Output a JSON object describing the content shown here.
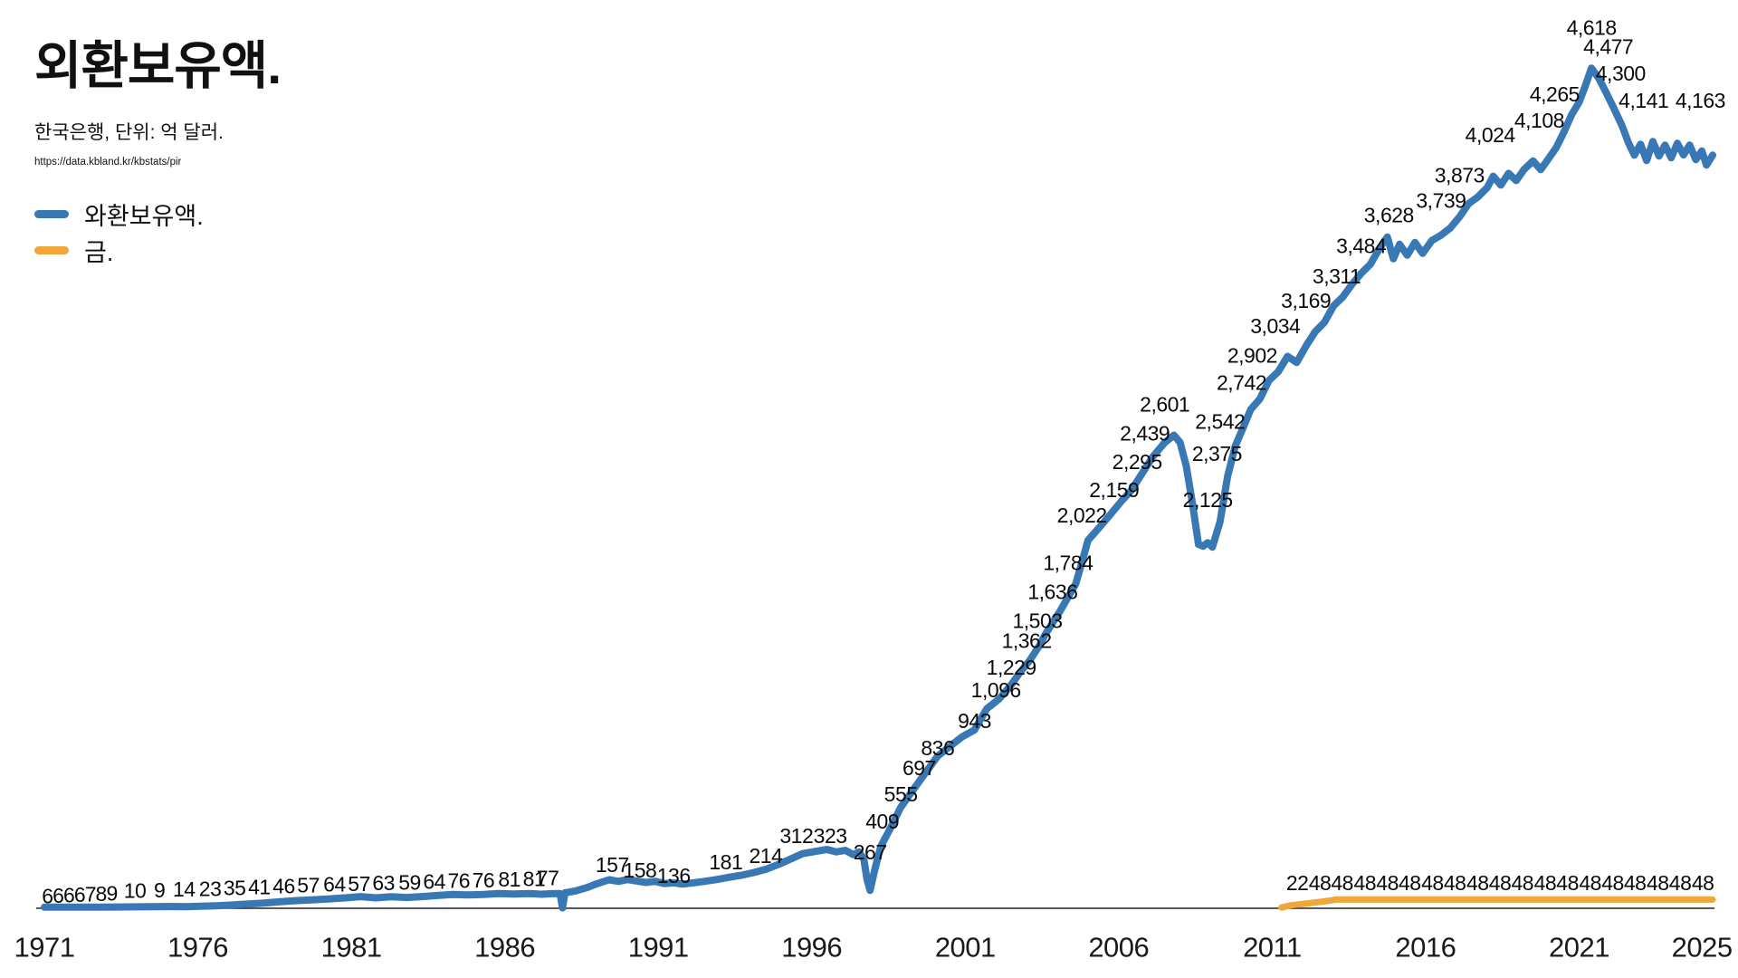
{
  "header": {
    "title": "외환보유액.",
    "subtitle": "한국은행, 단위: 억 달러.",
    "source_url": "https://data.kbland.kr/kbstats/pir"
  },
  "legend": {
    "items": [
      {
        "label": "와환보유액.",
        "color": "#3878b4"
      },
      {
        "label": "금.",
        "color": "#efa63a"
      }
    ]
  },
  "chart_data": {
    "type": "line",
    "title": "외환보유액.",
    "unit": "억 달러",
    "grid": false,
    "legend_position": "top-left",
    "x_axis": {
      "ticks": [
        1971,
        1976,
        1981,
        1986,
        1991,
        1996,
        2001,
        2006,
        2011,
        2016,
        2021,
        2025
      ],
      "range": [
        1971,
        2025.5
      ]
    },
    "y_axis": {
      "visible": false,
      "range": [
        0,
        4900
      ]
    },
    "series": [
      {
        "name": "와환보유액.",
        "color": "#3878b4",
        "stroke_width": 8,
        "points": [
          [
            1971.0,
            6
          ],
          [
            1971.6,
            6
          ],
          [
            1972.2,
            6
          ],
          [
            1972.8,
            6
          ],
          [
            1973.4,
            7
          ],
          [
            1974.0,
            8
          ],
          [
            1974.6,
            9
          ],
          [
            1975.1,
            10
          ],
          [
            1975.6,
            9
          ],
          [
            1976.1,
            11
          ],
          [
            1976.6,
            14
          ],
          [
            1977.1,
            18
          ],
          [
            1977.6,
            23
          ],
          [
            1978.1,
            28
          ],
          [
            1978.6,
            35
          ],
          [
            1979.1,
            41
          ],
          [
            1979.7,
            46
          ],
          [
            1980.3,
            52
          ],
          [
            1980.8,
            57
          ],
          [
            1981.3,
            64
          ],
          [
            1981.8,
            57
          ],
          [
            1982.3,
            63
          ],
          [
            1982.8,
            59
          ],
          [
            1983.3,
            64
          ],
          [
            1983.8,
            70
          ],
          [
            1984.3,
            76
          ],
          [
            1984.8,
            73
          ],
          [
            1985.3,
            76
          ],
          [
            1985.8,
            81
          ],
          [
            1986.3,
            78
          ],
          [
            1986.8,
            81
          ],
          [
            1987.2,
            77
          ],
          [
            1987.55,
            80
          ],
          [
            1987.8,
            81
          ],
          [
            1987.88,
            2
          ],
          [
            1987.96,
            85
          ],
          [
            1988.3,
            95
          ],
          [
            1988.7,
            115
          ],
          [
            1989.0,
            135
          ],
          [
            1989.4,
            157
          ],
          [
            1989.7,
            148
          ],
          [
            1990.0,
            158
          ],
          [
            1990.3,
            150
          ],
          [
            1990.6,
            142
          ],
          [
            1990.9,
            148
          ],
          [
            1991.2,
            136
          ],
          [
            1991.5,
            140
          ],
          [
            1991.8,
            133
          ],
          [
            1992.1,
            139
          ],
          [
            1992.5,
            148
          ],
          [
            1992.9,
            158
          ],
          [
            1993.3,
            170
          ],
          [
            1993.7,
            181
          ],
          [
            1994.1,
            196
          ],
          [
            1994.5,
            214
          ],
          [
            1994.9,
            240
          ],
          [
            1995.3,
            270
          ],
          [
            1995.7,
            300
          ],
          [
            1996.1,
            312
          ],
          [
            1996.5,
            323
          ],
          [
            1996.8,
            310
          ],
          [
            1997.1,
            318
          ],
          [
            1997.35,
            295
          ],
          [
            1997.55,
            310
          ],
          [
            1997.7,
            267
          ],
          [
            1997.8,
            160
          ],
          [
            1997.9,
            98
          ],
          [
            1998.05,
            210
          ],
          [
            1998.25,
            340
          ],
          [
            1998.5,
            420
          ],
          [
            1998.9,
            555
          ],
          [
            1999.5,
            697
          ],
          [
            2000.1,
            836
          ],
          [
            2000.5,
            890
          ],
          [
            2000.9,
            943
          ],
          [
            2001.3,
            980
          ],
          [
            2001.7,
            1096
          ],
          [
            2002.1,
            1150
          ],
          [
            2002.5,
            1229
          ],
          [
            2002.8,
            1300
          ],
          [
            2003.1,
            1362
          ],
          [
            2003.4,
            1440
          ],
          [
            2003.6,
            1503
          ],
          [
            2003.85,
            1570
          ],
          [
            2004.1,
            1636
          ],
          [
            2004.35,
            1710
          ],
          [
            2004.6,
            1784
          ],
          [
            2004.8,
            1900
          ],
          [
            2005.0,
            2022
          ],
          [
            2005.3,
            2080
          ],
          [
            2005.7,
            2159
          ],
          [
            2006.1,
            2240
          ],
          [
            2006.4,
            2295
          ],
          [
            2006.8,
            2400
          ],
          [
            2007.1,
            2480
          ],
          [
            2007.5,
            2560
          ],
          [
            2007.8,
            2601
          ],
          [
            2008.0,
            2560
          ],
          [
            2008.2,
            2430
          ],
          [
            2008.4,
            2230
          ],
          [
            2008.6,
            2000
          ],
          [
            2008.75,
            1990
          ],
          [
            2008.9,
            2010
          ],
          [
            2009.05,
            1985
          ],
          [
            2009.3,
            2125
          ],
          [
            2009.55,
            2375
          ],
          [
            2009.8,
            2542
          ],
          [
            2010.05,
            2640
          ],
          [
            2010.3,
            2742
          ],
          [
            2010.6,
            2800
          ],
          [
            2010.9,
            2902
          ],
          [
            2011.2,
            2950
          ],
          [
            2011.5,
            3034
          ],
          [
            2011.8,
            3000
          ],
          [
            2012.1,
            3090
          ],
          [
            2012.4,
            3169
          ],
          [
            2012.7,
            3220
          ],
          [
            2013.0,
            3311
          ],
          [
            2013.3,
            3360
          ],
          [
            2013.6,
            3430
          ],
          [
            2013.9,
            3490
          ],
          [
            2014.2,
            3540
          ],
          [
            2014.5,
            3628
          ],
          [
            2014.75,
            3690
          ],
          [
            2014.95,
            3570
          ],
          [
            2015.15,
            3650
          ],
          [
            2015.4,
            3590
          ],
          [
            2015.65,
            3660
          ],
          [
            2015.9,
            3600
          ],
          [
            2016.2,
            3670
          ],
          [
            2016.5,
            3700
          ],
          [
            2016.8,
            3739
          ],
          [
            2017.1,
            3800
          ],
          [
            2017.4,
            3873
          ],
          [
            2017.7,
            3910
          ],
          [
            2018.0,
            3960
          ],
          [
            2018.2,
            4024
          ],
          [
            2018.45,
            3975
          ],
          [
            2018.7,
            4040
          ],
          [
            2018.95,
            4000
          ],
          [
            2019.2,
            4060
          ],
          [
            2019.5,
            4108
          ],
          [
            2019.75,
            4060
          ],
          [
            2020.0,
            4120
          ],
          [
            2020.25,
            4180
          ],
          [
            2020.5,
            4265
          ],
          [
            2020.75,
            4360
          ],
          [
            2021.0,
            4431
          ],
          [
            2021.2,
            4520
          ],
          [
            2021.4,
            4618
          ],
          [
            2021.65,
            4560
          ],
          [
            2021.9,
            4477
          ],
          [
            2022.15,
            4390
          ],
          [
            2022.4,
            4300
          ],
          [
            2022.6,
            4210
          ],
          [
            2022.8,
            4140
          ],
          [
            2023.0,
            4200
          ],
          [
            2023.2,
            4110
          ],
          [
            2023.4,
            4215
          ],
          [
            2023.6,
            4135
          ],
          [
            2023.8,
            4195
          ],
          [
            2024.0,
            4125
          ],
          [
            2024.2,
            4205
          ],
          [
            2024.4,
            4141
          ],
          [
            2024.6,
            4195
          ],
          [
            2024.8,
            4115
          ],
          [
            2025.0,
            4163
          ],
          [
            2025.15,
            4085
          ],
          [
            2025.35,
            4140
          ]
        ],
        "labels": [
          [
            "6",
            1971.1,
            68
          ],
          [
            "6",
            1971.45,
            70
          ],
          [
            "6",
            1971.8,
            72
          ],
          [
            "6",
            1972.15,
            74
          ],
          [
            "7",
            1972.5,
            77
          ],
          [
            "8",
            1972.85,
            80
          ],
          [
            "9",
            1973.2,
            83
          ],
          [
            "10",
            1973.95,
            96
          ],
          [
            "9",
            1974.75,
            100
          ],
          [
            "14",
            1975.55,
            104
          ],
          [
            "23",
            1976.4,
            108
          ],
          [
            "35",
            1977.2,
            112
          ],
          [
            "41",
            1978.0,
            116
          ],
          [
            "46",
            1978.8,
            121
          ],
          [
            "57",
            1979.6,
            126
          ],
          [
            "64",
            1980.45,
            131
          ],
          [
            "57",
            1981.25,
            135
          ],
          [
            "63",
            1982.05,
            139
          ],
          [
            "59",
            1982.9,
            143
          ],
          [
            "64",
            1983.7,
            147
          ],
          [
            "76",
            1984.5,
            151
          ],
          [
            "76",
            1985.3,
            155
          ],
          [
            "81",
            1986.15,
            159
          ],
          [
            "81",
            1986.95,
            163
          ],
          [
            "77",
            1987.4,
            167
          ],
          [
            "157",
            1989.5,
            239
          ],
          [
            "158",
            1990.4,
            209
          ],
          [
            "136",
            1991.5,
            179
          ],
          [
            "181",
            1993.2,
            254
          ],
          [
            "214",
            1994.5,
            289
          ],
          [
            "312",
            1995.5,
            398
          ],
          [
            "323",
            1996.6,
            398
          ],
          [
            "267",
            1997.9,
            308
          ],
          [
            "409",
            1998.3,
            478
          ],
          [
            "555",
            1998.9,
            627
          ],
          [
            "697",
            1999.5,
            772
          ],
          [
            "836",
            2000.1,
            880
          ],
          [
            "943",
            2001.3,
            1030
          ],
          [
            "1,096",
            2002.0,
            1200
          ],
          [
            "1,229",
            2002.5,
            1325
          ],
          [
            "1,362",
            2003.0,
            1470
          ],
          [
            "1,503",
            2003.35,
            1580
          ],
          [
            "1,636",
            2003.85,
            1740
          ],
          [
            "1,784",
            2004.35,
            1900
          ],
          [
            "2,022",
            2004.8,
            2160
          ],
          [
            "2,159",
            2005.85,
            2300
          ],
          [
            "2,295",
            2006.6,
            2455
          ],
          [
            "2,439",
            2006.85,
            2610
          ],
          [
            "2,601",
            2007.5,
            2770
          ],
          [
            "2,125",
            2008.9,
            2245
          ],
          [
            "2,375",
            2009.2,
            2500
          ],
          [
            "2,542",
            2009.3,
            2675
          ],
          [
            "2,742",
            2010.0,
            2890
          ],
          [
            "2,902",
            2010.35,
            3040
          ],
          [
            "3,034",
            2011.1,
            3200
          ],
          [
            "3,169",
            2012.1,
            3340
          ],
          [
            "3,311",
            2013.1,
            3475
          ],
          [
            "3,484",
            2013.9,
            3640
          ],
          [
            "3,628",
            2014.8,
            3810
          ],
          [
            "3,739",
            2016.5,
            3890
          ],
          [
            "3,873",
            2017.1,
            4030
          ],
          [
            "4,024",
            2018.1,
            4250
          ],
          [
            "4,108",
            2019.7,
            4330
          ],
          [
            "4,265",
            2020.2,
            4475
          ],
          [
            "4,618",
            2021.4,
            4840
          ],
          [
            "4,477",
            2021.95,
            4735
          ],
          [
            "4,300",
            2022.35,
            4590
          ],
          [
            "4,141",
            2023.1,
            4440
          ],
          [
            "4,163",
            2024.95,
            4440
          ]
        ]
      },
      {
        "name": "금.",
        "color": "#efa63a",
        "stroke_width": 7,
        "points": [
          [
            2011.3,
            4
          ],
          [
            2011.6,
            16
          ],
          [
            2011.9,
            22
          ],
          [
            2012.3,
            30
          ],
          [
            2012.7,
            38
          ],
          [
            2013.1,
            48
          ],
          [
            2025.35,
            48
          ]
        ],
        "labels": [
          [
            "22",
            2011.82,
            140
          ],
          [
            "48",
            2012.55,
            140
          ],
          [
            "48",
            2013.28,
            140
          ],
          [
            "48",
            2014.02,
            140
          ],
          [
            "48",
            2014.75,
            140
          ],
          [
            "48",
            2015.48,
            140
          ],
          [
            "48",
            2016.22,
            140
          ],
          [
            "48",
            2016.95,
            140
          ],
          [
            "48",
            2017.69,
            140
          ],
          [
            "48",
            2018.42,
            140
          ],
          [
            "48",
            2019.15,
            140
          ],
          [
            "48",
            2019.89,
            140
          ],
          [
            "48",
            2020.62,
            140
          ],
          [
            "48",
            2021.36,
            140
          ],
          [
            "48",
            2022.09,
            140
          ],
          [
            "48",
            2022.82,
            140
          ],
          [
            "48",
            2023.56,
            140
          ],
          [
            "48",
            2024.29,
            140
          ],
          [
            "48",
            2025.03,
            140
          ]
        ]
      }
    ]
  }
}
